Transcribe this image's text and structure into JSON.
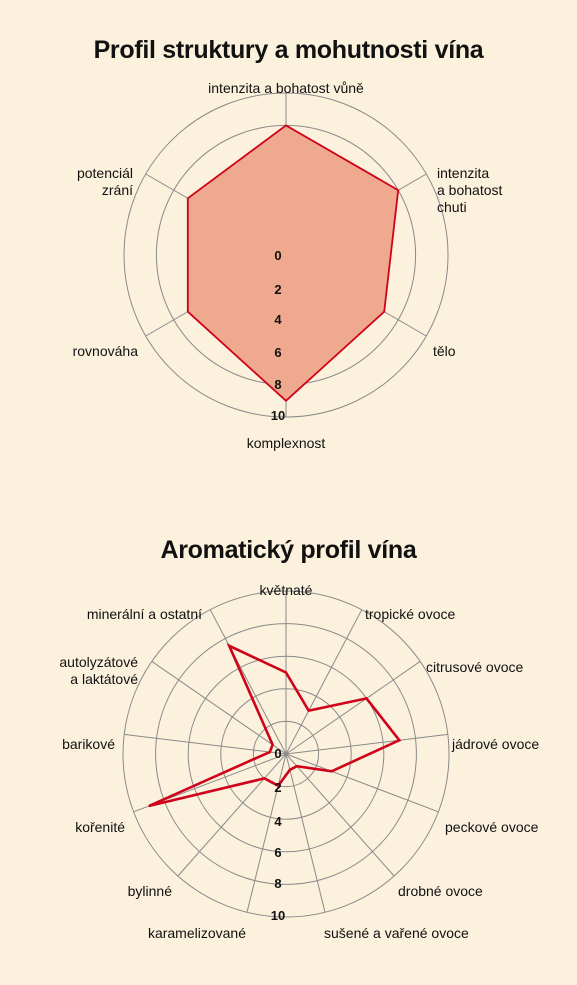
{
  "colors": {
    "background": "#fbf1dc",
    "grid": "#8a8a8a",
    "series_line": "#d0021b",
    "area_fill": "#eea98e"
  },
  "chart_data": [
    {
      "type": "radar",
      "title": "Profil struktury a mohutnosti vína",
      "axes": [
        "intenzita a bohatost vůně",
        "intenzita a bohatost chuti",
        "tělo",
        "komplexnost",
        "rovnováha",
        "potenciál zrání"
      ],
      "axis_label_lines": [
        [
          "intenzita a bohatost vůně"
        ],
        [
          "intenzita",
          "a bohatost",
          "chuti"
        ],
        [
          "tělo"
        ],
        [
          "komplexnost"
        ],
        [
          "rovnováha"
        ],
        [
          "potenciál",
          "zrání"
        ]
      ],
      "rings": [
        2,
        4,
        6,
        8,
        10
      ],
      "tick_labels": [
        "0",
        "2",
        "4",
        "6",
        "8",
        "10"
      ],
      "range": [
        0,
        10
      ],
      "values": [
        8,
        8,
        7,
        9,
        7,
        7
      ],
      "filled": true,
      "grid": true
    },
    {
      "type": "radar",
      "title": "Aromatický profil vína",
      "axes": [
        "květnaté",
        "tropické ovoce",
        "citrusové ovoce",
        "jádrové ovoce",
        "peckové ovoce",
        "drobné ovoce",
        "sušené a vařené ovoce",
        "karamelizované",
        "bylinné",
        "kořenité",
        "barikové",
        "autolyzátové a laktátové",
        "minerální a ostatní"
      ],
      "axis_label_lines": [
        [
          "květnaté"
        ],
        [
          "tropické ovoce"
        ],
        [
          "citrusové ovoce"
        ],
        [
          "jádrové ovoce"
        ],
        [
          "peckové ovoce"
        ],
        [
          "drobné ovoce"
        ],
        [
          "sušené a vařené ovoce"
        ],
        [
          "karamelizované"
        ],
        [
          "bylinné"
        ],
        [
          "kořenité"
        ],
        [
          "barikové"
        ],
        [
          "autolyzátové",
          "a laktátové"
        ],
        [
          "minerální a ostatní"
        ]
      ],
      "rings": [
        2,
        4,
        6,
        8,
        10
      ],
      "tick_labels": [
        "0",
        "2",
        "4",
        "6",
        "8",
        "10"
      ],
      "range": [
        0,
        10
      ],
      "values": [
        5,
        3,
        6,
        7,
        3,
        1,
        1,
        2,
        2,
        9,
        1,
        1,
        7.5
      ],
      "filled": false,
      "grid": true
    }
  ]
}
